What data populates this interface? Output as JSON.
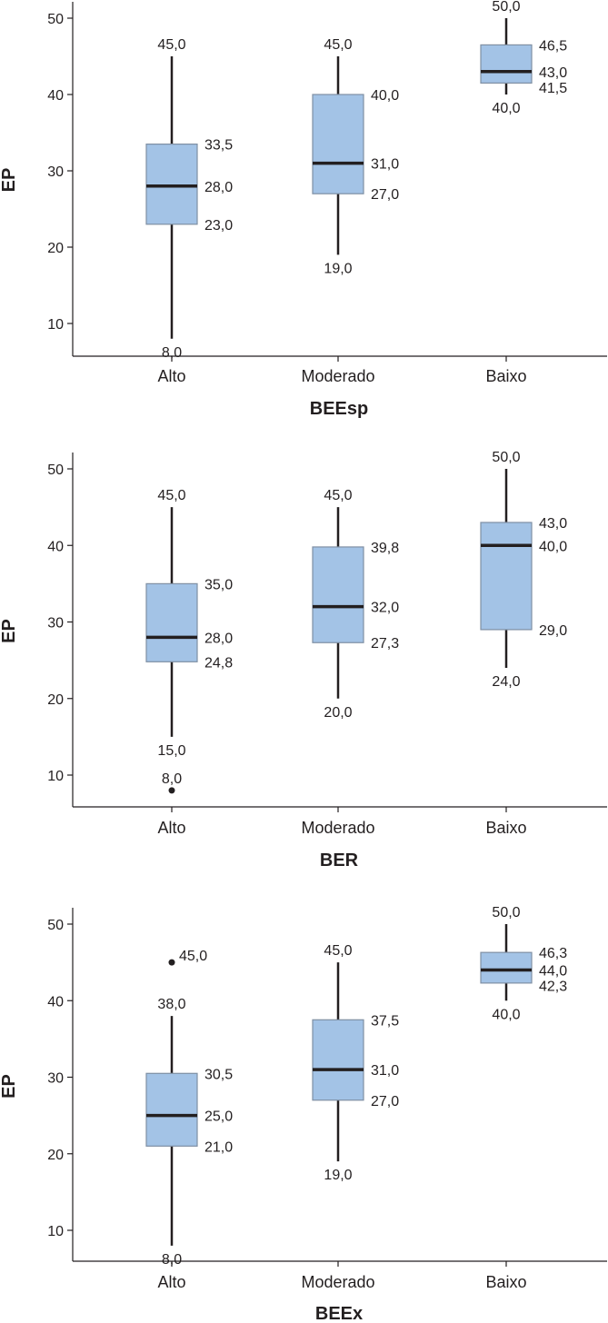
{
  "chart_data": [
    {
      "type": "boxplot",
      "title": "",
      "xlabel": "BEEsp",
      "ylabel": "EP",
      "ylim": [
        5,
        50
      ],
      "yticks": [
        10,
        20,
        30,
        40,
        50
      ],
      "categories": [
        "Alto",
        "Moderado",
        "Baixo"
      ],
      "boxes": [
        {
          "category": "Alto",
          "min": 8,
          "q1": 23,
          "median": 28,
          "q3": 33.5,
          "max": 45,
          "labels": {
            "min": "8,0",
            "q1": "23,0",
            "median": "28,0",
            "q3": "33,5",
            "max": "45,0"
          },
          "outliers": []
        },
        {
          "category": "Moderado",
          "min": 19,
          "q1": 27,
          "median": 31,
          "q3": 40,
          "max": 45,
          "labels": {
            "min": "19,0",
            "q1": "27,0",
            "median": "31,0",
            "q3": "40,0",
            "max": "45,0"
          },
          "outliers": []
        },
        {
          "category": "Baixo",
          "min": 40,
          "q1": 41.5,
          "median": 43,
          "q3": 46.5,
          "max": 50,
          "labels": {
            "min": "40,0",
            "q1": "41,5",
            "median": "43,0",
            "q3": "46,5",
            "max": "50,0"
          },
          "outliers": []
        }
      ]
    },
    {
      "type": "boxplot",
      "title": "",
      "xlabel": "BER",
      "ylabel": "EP",
      "ylim": [
        5,
        50
      ],
      "yticks": [
        10,
        20,
        30,
        40,
        50
      ],
      "categories": [
        "Alto",
        "Moderado",
        "Baixo"
      ],
      "boxes": [
        {
          "category": "Alto",
          "min": 15,
          "q1": 24.8,
          "median": 28,
          "q3": 35,
          "max": 45,
          "labels": {
            "min": "15,0",
            "q1": "24,8",
            "median": "28,0",
            "q3": "35,0",
            "max": "45,0"
          },
          "outliers": [
            {
              "value": 8,
              "label": "8,0"
            }
          ]
        },
        {
          "category": "Moderado",
          "min": 20,
          "q1": 27.3,
          "median": 32,
          "q3": 39.8,
          "max": 45,
          "labels": {
            "min": "20,0",
            "q1": "27,3",
            "median": "32,0",
            "q3": "39,8",
            "max": "45,0"
          },
          "outliers": []
        },
        {
          "category": "Baixo",
          "min": 24,
          "q1": 29,
          "median": 40,
          "q3": 43,
          "max": 50,
          "labels": {
            "min": "24,0",
            "q1": "29,0",
            "median": "40,0",
            "q3": "43,0",
            "max": "50,0"
          },
          "outliers": []
        }
      ]
    },
    {
      "type": "boxplot",
      "title": "",
      "xlabel": "BEEx",
      "ylabel": "EP",
      "ylim": [
        5,
        50
      ],
      "yticks": [
        10,
        20,
        30,
        40,
        50
      ],
      "categories": [
        "Alto",
        "Moderado",
        "Baixo"
      ],
      "boxes": [
        {
          "category": "Alto",
          "min": 8,
          "q1": 21,
          "median": 25,
          "q3": 30.5,
          "max": 38,
          "labels": {
            "min": "8,0",
            "q1": "21,0",
            "median": "25,0",
            "q3": "30,5",
            "max": "38,0"
          },
          "outliers": [
            {
              "value": 45,
              "label": "45,0"
            }
          ]
        },
        {
          "category": "Moderado",
          "min": 19,
          "q1": 27,
          "median": 31,
          "q3": 37.5,
          "max": 45,
          "labels": {
            "min": "19,0",
            "q1": "27,0",
            "median": "31,0",
            "q3": "37,5",
            "max": "45,0"
          },
          "outliers": []
        },
        {
          "category": "Baixo",
          "min": 40,
          "q1": 42.3,
          "median": 44,
          "q3": 46.3,
          "max": 50,
          "labels": {
            "min": "40,0",
            "q1": "42,3",
            "median": "44,0",
            "q3": "46,3",
            "max": "50,0"
          },
          "outliers": []
        }
      ]
    }
  ]
}
